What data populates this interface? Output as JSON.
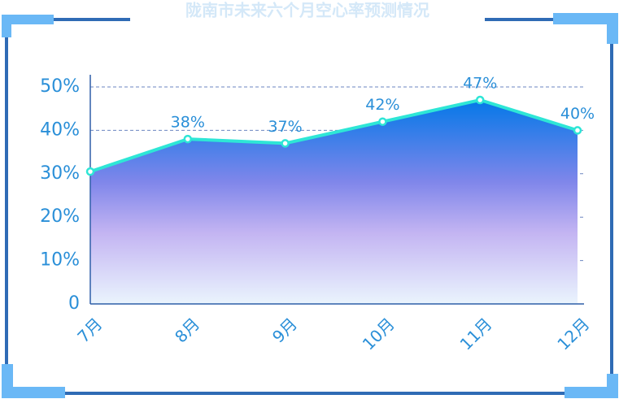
{
  "chart_data": {
    "type": "area",
    "title": "陇南市未来六个月空心率预测情况",
    "categories": [
      "7月",
      "8月",
      "9月",
      "10月",
      "11月",
      "12月"
    ],
    "values": [
      30.5,
      38,
      37,
      42,
      47,
      40
    ],
    "value_labels": [
      null,
      "38%",
      "37%",
      "42%",
      "47%",
      "40%"
    ],
    "color": "#2ee6d6",
    "ylim": [
      0,
      50
    ],
    "yticks": [
      0,
      {
        "value": 10,
        "label": "10%"
      },
      {
        "value": 20,
        "label": "20%"
      },
      {
        "value": 30,
        "label": "30%"
      },
      {
        "value": 40,
        "label": "40%"
      },
      {
        "value": 50,
        "label": "50%"
      }
    ],
    "grid": true
  }
}
